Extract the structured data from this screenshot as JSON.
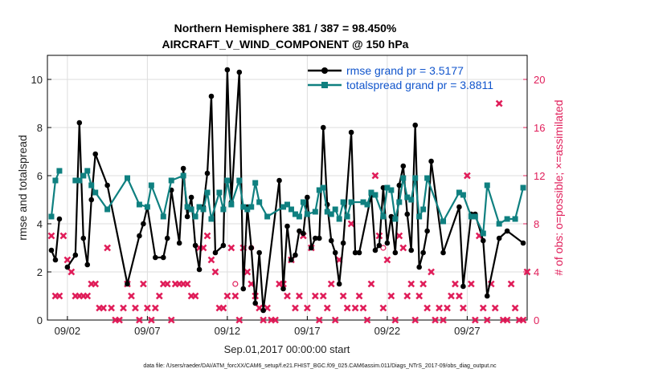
{
  "chart_data": {
    "type": "line",
    "title_line1": "Northern Hemisphere 381 / 387 = 98.450%",
    "title_line2": "AIRCRAFT_V_WIND_COMPONENT @ 150 hPa",
    "xlabel": "Sep.01,2017 00:00:00 start",
    "ylabel_left": "rmse and totalspread",
    "ylabel_right": "# of obs: o=possible; ×=assimilated",
    "footer": "data file: /Users/raeder/DAI/ATM_forcXX/CAM6_setup/f.e21.FHIST_BGC.f09_025.CAM6assim.011/Diags_NTrS_2017-09/obs_diag_output.nc",
    "xlim": [
      0.75,
      30.75
    ],
    "ylim_left": [
      0,
      11
    ],
    "ylim_right": [
      0,
      22
    ],
    "xticks": [
      {
        "x": 2,
        "label": "09/02"
      },
      {
        "x": 7,
        "label": "09/07"
      },
      {
        "x": 12,
        "label": "09/12"
      },
      {
        "x": 17,
        "label": "09/17"
      },
      {
        "x": 22,
        "label": "09/22"
      },
      {
        "x": 27,
        "label": "09/27"
      }
    ],
    "yticks_left": [
      {
        "v": 0,
        "label": "0"
      },
      {
        "v": 2,
        "label": "2"
      },
      {
        "v": 4,
        "label": "4"
      },
      {
        "v": 6,
        "label": "6"
      },
      {
        "v": 8,
        "label": "8"
      },
      {
        "v": 10,
        "label": "10"
      }
    ],
    "yticks_right": [
      {
        "v": 0,
        "label": "0"
      },
      {
        "v": 4,
        "label": "4"
      },
      {
        "v": 8,
        "label": "8"
      },
      {
        "v": 12,
        "label": "12"
      },
      {
        "v": 16,
        "label": "16"
      },
      {
        "v": 20,
        "label": "20"
      }
    ],
    "colors": {
      "rmse": "#000000",
      "spread": "#0f8080",
      "obs": "#e01e5a",
      "legend_text": "#1155cc"
    },
    "series": [
      {
        "name": "rmse grand pr = 3.5177",
        "key": "rmse",
        "points": [
          [
            1.0,
            2.9
          ],
          [
            1.25,
            2.5
          ],
          [
            1.5,
            4.2
          ],
          [
            1.75,
            null
          ],
          [
            2.0,
            2.2
          ],
          [
            2.5,
            2.7
          ],
          [
            2.75,
            8.2
          ],
          [
            3.0,
            3.4
          ],
          [
            3.25,
            2.3
          ],
          [
            3.5,
            5.0
          ],
          [
            3.75,
            6.9
          ],
          [
            4.5,
            5.6
          ],
          [
            5.75,
            1.5
          ],
          [
            6.5,
            3.5
          ],
          [
            6.75,
            4.0
          ],
          [
            7.0,
            4.7
          ],
          [
            7.5,
            2.6
          ],
          [
            8.0,
            2.6
          ],
          [
            8.25,
            3.4
          ],
          [
            8.5,
            5.4
          ],
          [
            9.0,
            3.2
          ],
          [
            9.25,
            6.3
          ],
          [
            9.5,
            4.3
          ],
          [
            9.75,
            5.1
          ],
          [
            10.0,
            3.1
          ],
          [
            10.25,
            2.1
          ],
          [
            10.5,
            4.7
          ],
          [
            10.75,
            6.1
          ],
          [
            11.0,
            9.3
          ],
          [
            11.25,
            2.8
          ],
          [
            11.75,
            3.1
          ],
          [
            12.0,
            10.4
          ],
          [
            12.25,
            4.9
          ],
          [
            12.75,
            10.3
          ],
          [
            13.0,
            1.3
          ],
          [
            13.25,
            4.7
          ],
          [
            13.5,
            3.0
          ],
          [
            13.75,
            0.7
          ],
          [
            14.0,
            2.8
          ],
          [
            14.25,
            0.4
          ],
          [
            15.25,
            5.8
          ],
          [
            15.5,
            1.3
          ],
          [
            15.75,
            3.9
          ],
          [
            16.0,
            2.5
          ],
          [
            16.25,
            2.7
          ],
          [
            16.5,
            3.7
          ],
          [
            16.75,
            3.6
          ],
          [
            17.0,
            5.1
          ],
          [
            17.25,
            3.0
          ],
          [
            17.5,
            3.4
          ],
          [
            17.75,
            3.4
          ],
          [
            18.0,
            8.0
          ],
          [
            18.25,
            4.8
          ],
          [
            18.5,
            3.3
          ],
          [
            18.75,
            2.8
          ],
          [
            19.0,
            1.5
          ],
          [
            19.25,
            3.2
          ],
          [
            19.75,
            7.8
          ],
          [
            20.0,
            2.8
          ],
          [
            20.25,
            2.8
          ],
          [
            21.0,
            5.2
          ],
          [
            21.25,
            2.9
          ],
          [
            21.5,
            3.1
          ],
          [
            21.75,
            5.5
          ],
          [
            22.0,
            3.2
          ],
          [
            22.25,
            4.3
          ],
          [
            22.5,
            2.8
          ],
          [
            22.75,
            5.6
          ],
          [
            23.0,
            6.4
          ],
          [
            23.25,
            4.4
          ],
          [
            23.5,
            2.9
          ],
          [
            23.75,
            8.1
          ],
          [
            24.0,
            2.2
          ],
          [
            24.25,
            2.8
          ],
          [
            24.5,
            3.7
          ],
          [
            24.75,
            6.6
          ],
          [
            25.5,
            2.8
          ],
          [
            26.5,
            4.7
          ],
          [
            26.75,
            1.4
          ],
          [
            27.25,
            4.4
          ],
          [
            27.5,
            4.4
          ],
          [
            28.0,
            3.3
          ],
          [
            28.25,
            1.0
          ],
          [
            29.0,
            3.4
          ],
          [
            29.5,
            3.7
          ],
          [
            30.5,
            3.2
          ]
        ]
      },
      {
        "name": "totalspread grand pr = 3.8811",
        "key": "spread",
        "points": [
          [
            1.0,
            4.3
          ],
          [
            1.25,
            5.8
          ],
          [
            1.5,
            6.2
          ],
          [
            1.75,
            null
          ],
          [
            2.5,
            5.8
          ],
          [
            2.75,
            5.8
          ],
          [
            3.0,
            6.0
          ],
          [
            3.25,
            6.2
          ],
          [
            3.5,
            5.6
          ],
          [
            3.75,
            5.3
          ],
          [
            4.5,
            4.6
          ],
          [
            5.75,
            5.9
          ],
          [
            6.5,
            4.8
          ],
          [
            7.0,
            4.7
          ],
          [
            7.25,
            5.6
          ],
          [
            8.0,
            4.3
          ],
          [
            8.5,
            5.8
          ],
          [
            9.25,
            6.0
          ],
          [
            9.5,
            4.7
          ],
          [
            9.75,
            4.6
          ],
          [
            10.0,
            4.3
          ],
          [
            10.25,
            4.7
          ],
          [
            10.5,
            4.6
          ],
          [
            10.75,
            5.3
          ],
          [
            11.0,
            4.2
          ],
          [
            11.5,
            5.3
          ],
          [
            11.75,
            4.6
          ],
          [
            12.0,
            5.8
          ],
          [
            12.25,
            4.8
          ],
          [
            12.75,
            5.8
          ],
          [
            13.0,
            4.7
          ],
          [
            13.25,
            4.6
          ],
          [
            13.5,
            4.7
          ],
          [
            13.75,
            5.7
          ],
          [
            14.0,
            4.9
          ],
          [
            14.5,
            4.3
          ],
          [
            15.5,
            4.7
          ],
          [
            15.75,
            4.8
          ],
          [
            16.0,
            4.6
          ],
          [
            16.25,
            4.4
          ],
          [
            16.5,
            4.3
          ],
          [
            16.75,
            4.9
          ],
          [
            17.0,
            4.4
          ],
          [
            17.5,
            4.5
          ],
          [
            17.75,
            5.4
          ],
          [
            18.0,
            5.5
          ],
          [
            18.25,
            4.5
          ],
          [
            18.5,
            4.4
          ],
          [
            18.75,
            4.6
          ],
          [
            19.0,
            4.2
          ],
          [
            19.25,
            4.9
          ],
          [
            19.5,
            4.3
          ],
          [
            19.75,
            4.9
          ],
          [
            20.5,
            4.9
          ],
          [
            20.75,
            4.8
          ],
          [
            21.0,
            5.3
          ],
          [
            21.25,
            5.2
          ],
          [
            21.75,
            4.3
          ],
          [
            22.0,
            5.5
          ],
          [
            22.25,
            5.4
          ],
          [
            22.5,
            4.2
          ],
          [
            22.75,
            4.9
          ],
          [
            23.0,
            5.9
          ],
          [
            23.25,
            5.1
          ],
          [
            23.5,
            5.0
          ],
          [
            23.75,
            5.9
          ],
          [
            24.0,
            4.3
          ],
          [
            24.25,
            4.6
          ],
          [
            24.5,
            5.9
          ],
          [
            25.5,
            4.1
          ],
          [
            26.5,
            5.3
          ],
          [
            26.75,
            5.2
          ],
          [
            27.25,
            4.3
          ],
          [
            27.5,
            4.3
          ],
          [
            28.0,
            3.6
          ],
          [
            28.25,
            5.6
          ],
          [
            29.0,
            4.0
          ],
          [
            29.5,
            4.2
          ],
          [
            30.0,
            4.2
          ],
          [
            30.5,
            5.5
          ]
        ]
      }
    ],
    "obs": {
      "name": "# of obs",
      "points": [
        [
          1.0,
          7
        ],
        [
          1.25,
          2
        ],
        [
          1.5,
          2
        ],
        [
          1.75,
          7
        ],
        [
          2.0,
          5
        ],
        [
          2.25,
          4
        ],
        [
          2.5,
          2
        ],
        [
          2.75,
          2
        ],
        [
          3.0,
          2
        ],
        [
          3.25,
          2
        ],
        [
          3.5,
          3
        ],
        [
          3.75,
          3
        ],
        [
          4.0,
          1
        ],
        [
          4.25,
          1
        ],
        [
          4.5,
          6
        ],
        [
          4.75,
          1
        ],
        [
          5.0,
          0
        ],
        [
          5.25,
          0
        ],
        [
          5.5,
          1
        ],
        [
          5.75,
          3
        ],
        [
          6.0,
          2
        ],
        [
          6.25,
          1
        ],
        [
          6.5,
          0
        ],
        [
          6.75,
          3
        ],
        [
          7.0,
          1
        ],
        [
          7.25,
          0
        ],
        [
          7.5,
          1
        ],
        [
          7.75,
          2
        ],
        [
          8.0,
          3
        ],
        [
          8.25,
          3
        ],
        [
          8.5,
          0
        ],
        [
          8.75,
          3
        ],
        [
          9.0,
          3
        ],
        [
          9.25,
          3
        ],
        [
          9.5,
          3
        ],
        [
          9.75,
          2
        ],
        [
          10.0,
          2
        ],
        [
          10.25,
          6
        ],
        [
          10.5,
          6
        ],
        [
          10.75,
          7
        ],
        [
          11.0,
          5
        ],
        [
          11.25,
          4
        ],
        [
          11.5,
          1
        ],
        [
          11.75,
          1
        ],
        [
          12.0,
          2
        ],
        [
          12.25,
          6
        ],
        [
          12.5,
          2
        ],
        [
          12.75,
          0
        ],
        [
          13.0,
          6
        ],
        [
          13.25,
          4
        ],
        [
          13.5,
          3
        ],
        [
          13.75,
          2
        ],
        [
          14.0,
          1
        ],
        [
          14.25,
          0
        ],
        [
          14.5,
          1
        ],
        [
          14.75,
          0
        ],
        [
          15.0,
          0
        ],
        [
          15.25,
          3
        ],
        [
          15.5,
          3
        ],
        [
          15.75,
          2
        ],
        [
          16.0,
          5
        ],
        [
          16.25,
          1
        ],
        [
          16.5,
          2
        ],
        [
          16.75,
          7
        ],
        [
          17.0,
          1
        ],
        [
          17.25,
          6
        ],
        [
          17.5,
          2
        ],
        [
          17.75,
          0
        ],
        [
          18.0,
          2
        ],
        [
          18.25,
          1
        ],
        [
          18.5,
          3
        ],
        [
          18.75,
          0
        ],
        [
          19.0,
          5
        ],
        [
          19.25,
          2
        ],
        [
          19.5,
          1
        ],
        [
          19.75,
          8
        ],
        [
          20.0,
          1
        ],
        [
          20.25,
          2
        ],
        [
          20.5,
          1
        ],
        [
          20.75,
          0
        ],
        [
          21.0,
          3
        ],
        [
          21.25,
          12
        ],
        [
          21.5,
          7
        ],
        [
          21.75,
          1
        ],
        [
          22.0,
          5
        ],
        [
          22.25,
          2
        ],
        [
          22.5,
          0
        ],
        [
          22.75,
          7
        ],
        [
          23.0,
          6
        ],
        [
          23.25,
          2
        ],
        [
          23.5,
          3
        ],
        [
          23.75,
          0
        ],
        [
          24.0,
          2
        ],
        [
          24.25,
          3
        ],
        [
          24.5,
          1
        ],
        [
          24.75,
          4
        ],
        [
          25.0,
          0
        ],
        [
          25.25,
          1
        ],
        [
          25.5,
          0
        ],
        [
          25.75,
          1
        ],
        [
          26.0,
          2
        ],
        [
          26.25,
          3
        ],
        [
          26.5,
          2
        ],
        [
          26.75,
          1
        ],
        [
          27.0,
          12
        ],
        [
          27.25,
          3
        ],
        [
          27.5,
          0
        ],
        [
          27.75,
          7
        ],
        [
          28.0,
          1
        ],
        [
          28.25,
          0
        ],
        [
          28.5,
          3
        ],
        [
          28.75,
          1
        ],
        [
          29.0,
          18
        ],
        [
          29.25,
          0
        ],
        [
          29.5,
          0
        ],
        [
          29.75,
          3
        ],
        [
          30.0,
          1
        ],
        [
          30.25,
          0
        ],
        [
          30.5,
          0
        ],
        [
          30.75,
          4
        ]
      ],
      "possible_markers": [
        [
          12.5,
          3
        ],
        [
          13.5,
          6
        ],
        [
          21.75,
          6
        ]
      ]
    }
  }
}
